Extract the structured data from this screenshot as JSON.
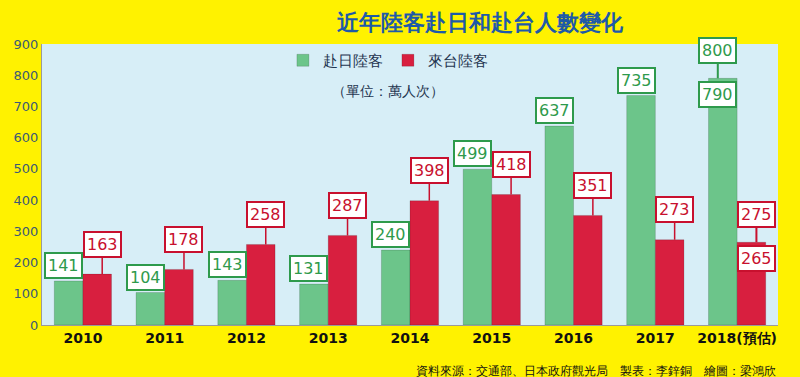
{
  "chart_data": {
    "type": "bar",
    "title": "近年陸客赴日和赴台人數變化",
    "subtitle": "（單位：萬人次）",
    "source": "資料來源：交通部、日本政府觀光局　製表：李鋅銅　繪圖：梁鴻欣",
    "categories": [
      "2010",
      "2011",
      "2012",
      "2013",
      "2014",
      "2015",
      "2016",
      "2017",
      "2018(預估)"
    ],
    "series": [
      {
        "name": "赴日陸客",
        "color": "#6cc58a",
        "values": [
          141,
          104,
          143,
          131,
          240,
          499,
          637,
          735,
          790
        ],
        "high": [
          null,
          null,
          null,
          null,
          null,
          null,
          null,
          null,
          800
        ]
      },
      {
        "name": "來台陸客",
        "color": "#d81f3f",
        "values": [
          163,
          178,
          258,
          287,
          398,
          418,
          351,
          273,
          265
        ],
        "high": [
          null,
          null,
          null,
          null,
          null,
          null,
          null,
          null,
          275
        ]
      }
    ],
    "ylim": [
      0,
      900
    ],
    "yticks": [
      0,
      100,
      200,
      300,
      400,
      500,
      600,
      700,
      800,
      900
    ],
    "grid": false,
    "data_labels": true,
    "legend": "top"
  }
}
